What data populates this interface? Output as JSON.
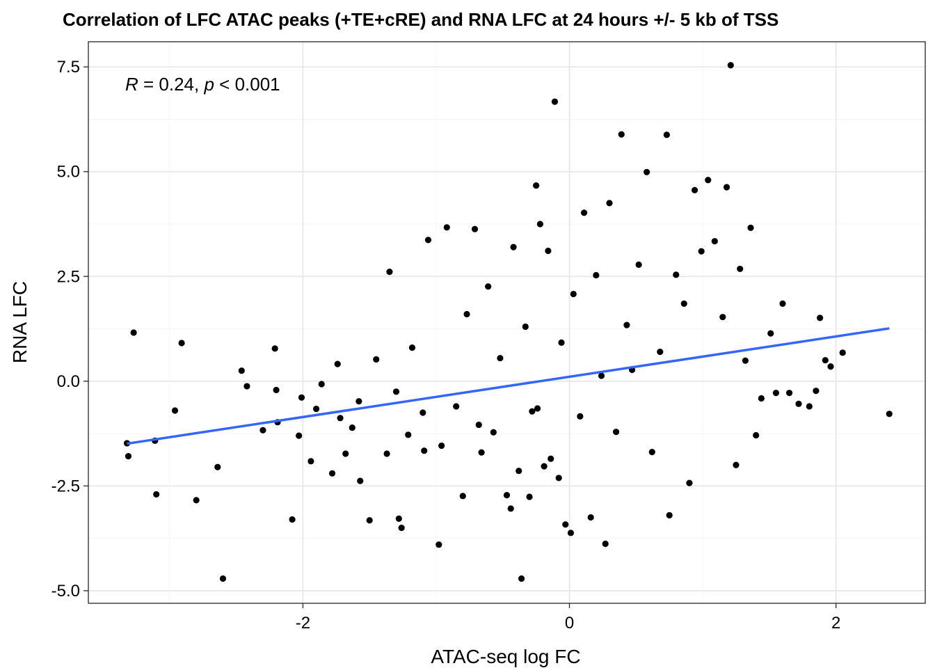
{
  "chart_data": {
    "type": "scatter",
    "title": "Correlation of LFC ATAC peaks (+TE+cRE) and RNA LFC at 24 hours +/- 5 kb of TSS",
    "xlabel": "ATAC-seq log FC",
    "ylabel": "RNA LFC",
    "xlim": [
      -3.61,
      2.67
    ],
    "ylim": [
      -5.3,
      8.1
    ],
    "x_ticks": [
      -2,
      0,
      2
    ],
    "x_tick_labels": [
      "-2",
      "0",
      "2"
    ],
    "y_ticks": [
      -5.0,
      -2.5,
      0.0,
      2.5,
      5.0,
      7.5
    ],
    "y_tick_labels": [
      "-5.0",
      "-2.5",
      "0.0",
      "2.5",
      "5.0",
      "7.5"
    ],
    "grid": true,
    "point_color": "#000000",
    "annotation": {
      "r_symbol": "R",
      "r_text": " = 0.24, ",
      "p_symbol": "p",
      "p_text": " < 0.001"
    },
    "regression": {
      "color": "#3366ff",
      "x": [
        -3.32,
        2.4
      ],
      "y": [
        -1.49,
        1.26
      ]
    },
    "x": [
      -3.32,
      -3.31,
      -3.27,
      -3.11,
      -3.1,
      -2.96,
      -2.91,
      -2.8,
      -2.64,
      -2.6,
      -2.46,
      -2.42,
      -2.3,
      -2.21,
      -2.2,
      -2.19,
      -2.08,
      -2.03,
      -2.01,
      -1.94,
      -1.9,
      -1.86,
      -1.78,
      -1.74,
      -1.72,
      -1.68,
      -1.63,
      -1.58,
      -1.57,
      -1.5,
      -1.45,
      -1.37,
      -1.35,
      -1.3,
      -1.28,
      -1.26,
      -1.21,
      -1.18,
      -1.1,
      -1.09,
      -1.06,
      -0.98,
      -0.96,
      -0.92,
      -0.85,
      -0.8,
      -0.77,
      -0.71,
      -0.68,
      -0.66,
      -0.61,
      -0.57,
      -0.52,
      -0.47,
      -0.44,
      -0.42,
      -0.38,
      -0.36,
      -0.33,
      -0.3,
      -0.28,
      -0.25,
      -0.24,
      -0.22,
      -0.19,
      -0.16,
      -0.14,
      -0.11,
      -0.08,
      -0.06,
      -0.03,
      0.01,
      0.03,
      0.08,
      0.11,
      0.16,
      0.2,
      0.24,
      0.27,
      0.3,
      0.35,
      0.39,
      0.43,
      0.47,
      0.52,
      0.58,
      0.62,
      0.68,
      0.73,
      0.75,
      0.8,
      0.86,
      0.9,
      0.94,
      0.99,
      1.04,
      1.09,
      1.15,
      1.18,
      1.21,
      1.25,
      1.28,
      1.32,
      1.36,
      1.4,
      1.44,
      1.51,
      1.55,
      1.6,
      1.65,
      1.72,
      1.8,
      1.85,
      1.88,
      1.92,
      1.96,
      2.05,
      2.4
    ],
    "y": [
      -1.48,
      -1.79,
      1.16,
      -1.42,
      -2.7,
      -0.7,
      0.91,
      -2.84,
      -2.05,
      -4.71,
      0.25,
      -0.12,
      -1.17,
      0.78,
      -0.21,
      -0.98,
      -3.3,
      -1.3,
      -0.39,
      -1.91,
      -0.66,
      -0.07,
      -2.2,
      0.41,
      -0.88,
      -1.73,
      -1.11,
      -0.48,
      -2.38,
      -3.32,
      0.52,
      -1.73,
      2.61,
      -0.25,
      -3.28,
      -3.5,
      -1.28,
      0.8,
      -0.75,
      -1.66,
      3.37,
      -3.9,
      -1.54,
      3.67,
      -0.6,
      -2.74,
      1.6,
      3.63,
      -1.04,
      -1.7,
      2.26,
      -1.22,
      0.55,
      -2.72,
      -3.04,
      3.2,
      -2.14,
      -4.71,
      1.3,
      -2.76,
      -0.72,
      4.67,
      -0.65,
      3.75,
      -2.03,
      3.11,
      -1.85,
      6.67,
      -2.31,
      0.92,
      -3.42,
      -3.62,
      2.08,
      -0.84,
      4.02,
      -3.25,
      2.53,
      0.13,
      -3.88,
      4.25,
      -1.21,
      5.89,
      1.34,
      0.27,
      2.78,
      4.99,
      -1.69,
      0.7,
      5.88,
      -3.2,
      2.54,
      1.85,
      -2.43,
      4.56,
      3.1,
      4.8,
      3.34,
      1.53,
      4.63,
      7.54,
      -2.0,
      2.68,
      0.49,
      3.66,
      -1.29,
      -0.41,
      1.14,
      -0.28,
      1.85,
      -0.28,
      -0.54,
      -0.6,
      -0.23,
      1.51,
      0.5,
      0.35,
      0.68,
      -0.78
    ]
  }
}
